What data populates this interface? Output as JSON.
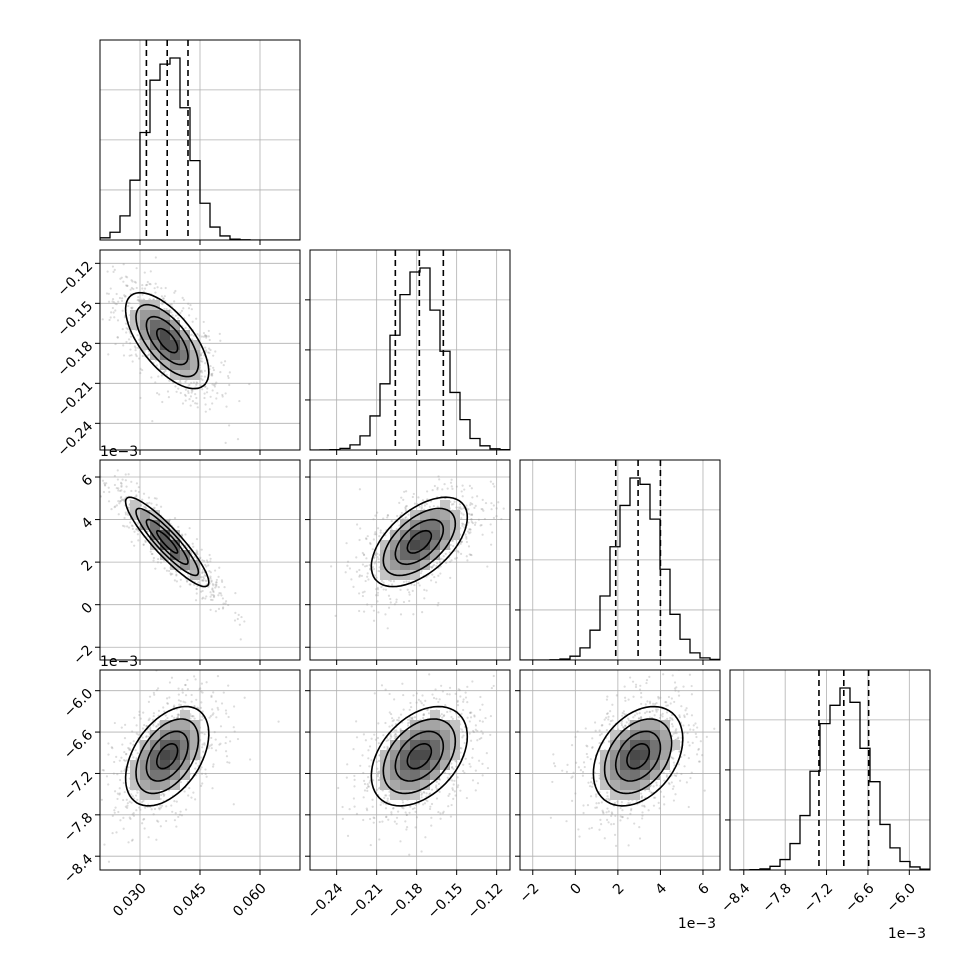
{
  "chart_data": {
    "type": "corner",
    "params": [
      {
        "range": [
          0.02,
          0.07
        ],
        "ticks": [
          0.03,
          0.045,
          0.06
        ],
        "tick_labels": [
          "0.030",
          "0.045",
          "0.060"
        ],
        "mean": 0.0368,
        "sd": 0.0052,
        "quantiles": [
          0.0316,
          0.0368,
          0.042
        ],
        "offset_label": ""
      },
      {
        "range": [
          -0.26,
          -0.11
        ],
        "ticks": [
          -0.24,
          -0.21,
          -0.18,
          -0.15,
          -0.12
        ],
        "tick_labels": [
          "−0.24",
          "−0.21",
          "−0.18",
          "−0.15",
          "−0.12"
        ],
        "mean": -0.178,
        "sd": 0.018,
        "quantiles": [
          -0.196,
          -0.178,
          -0.16
        ],
        "offset_label": ""
      },
      {
        "range": [
          -2.6,
          6.8
        ],
        "ticks": [
          -2,
          0,
          2,
          4,
          6
        ],
        "tick_labels": [
          "−2",
          "0",
          "2",
          "4",
          "6"
        ],
        "mean": 2.95,
        "sd": 1.05,
        "quantiles": [
          1.9,
          2.95,
          4.0
        ],
        "offset_label": "1e−3"
      },
      {
        "range": [
          -8.6,
          -5.7
        ],
        "ticks": [
          -8.4,
          -7.8,
          -7.2,
          -6.6,
          -6.0
        ],
        "tick_labels": [
          "−8.4",
          "−7.8",
          "−7.2",
          "−6.6",
          "−6.0"
        ],
        "mean": -6.95,
        "sd": 0.36,
        "quantiles": [
          -7.31,
          -6.95,
          -6.59
        ],
        "offset_label": "1e−3"
      }
    ],
    "correlations": {
      "1_0": -0.65,
      "2_0": -0.9,
      "2_1": 0.55,
      "3_0": 0.45,
      "3_1": 0.4,
      "3_2": 0.35
    },
    "histogram_bins": 20,
    "contour_levels": [
      0.5,
      1.0,
      1.5,
      2.0
    ],
    "grid": true
  }
}
